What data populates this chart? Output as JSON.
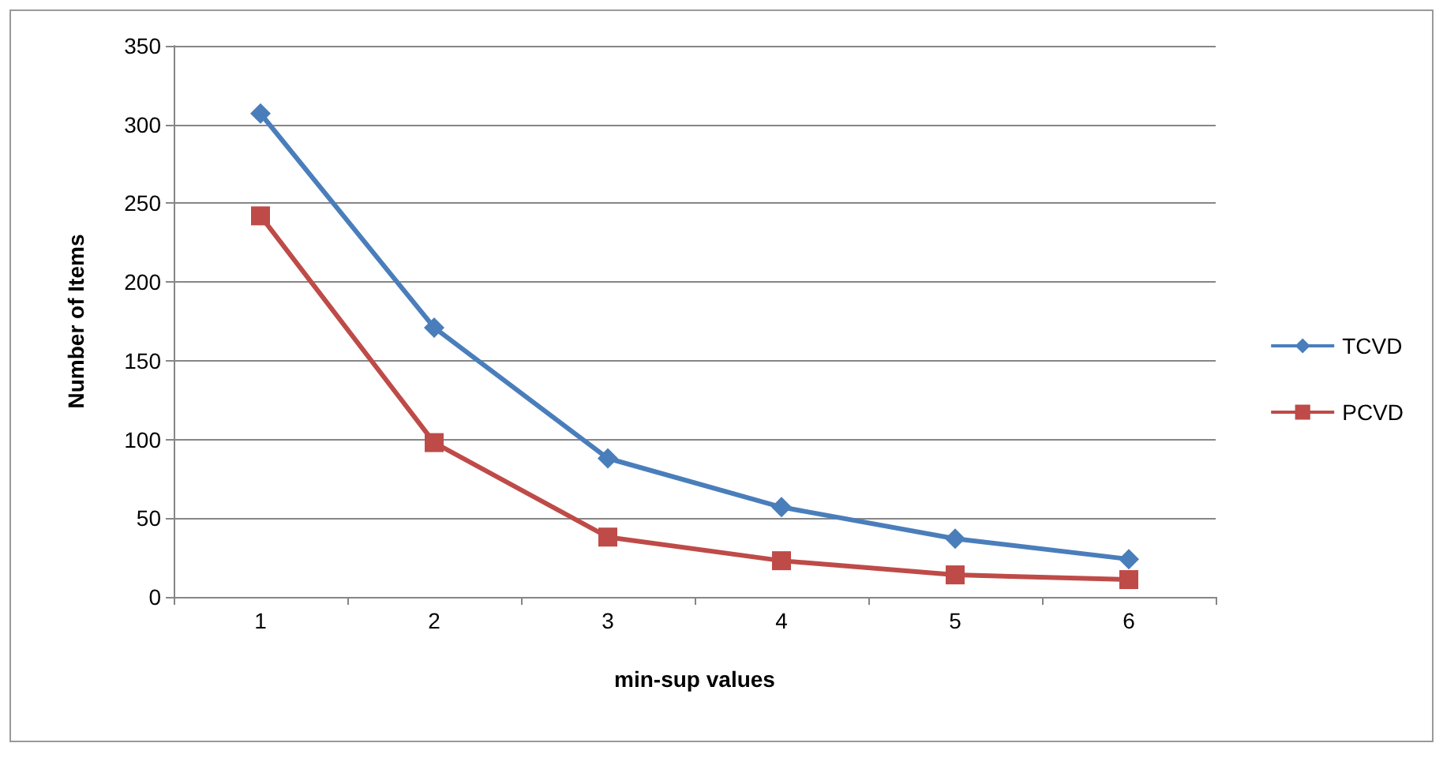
{
  "chart_data": {
    "type": "line",
    "xlabel": "min-sup values",
    "ylabel": "Number of Items",
    "categories": [
      "1",
      "2",
      "3",
      "4",
      "5",
      "6"
    ],
    "series": [
      {
        "name": "TCVD",
        "color": "#4a7ebb",
        "marker": "diamond",
        "values": [
          307,
          171,
          88,
          57,
          37,
          24
        ]
      },
      {
        "name": "PCVD",
        "color": "#be4b48",
        "marker": "square",
        "values": [
          242,
          98,
          38,
          23,
          14,
          11
        ]
      }
    ],
    "ylim": [
      0,
      350
    ],
    "yticks": [
      0,
      50,
      100,
      150,
      200,
      250,
      300,
      350
    ],
    "grid": "y",
    "legend": "right",
    "line_style": "solid"
  }
}
